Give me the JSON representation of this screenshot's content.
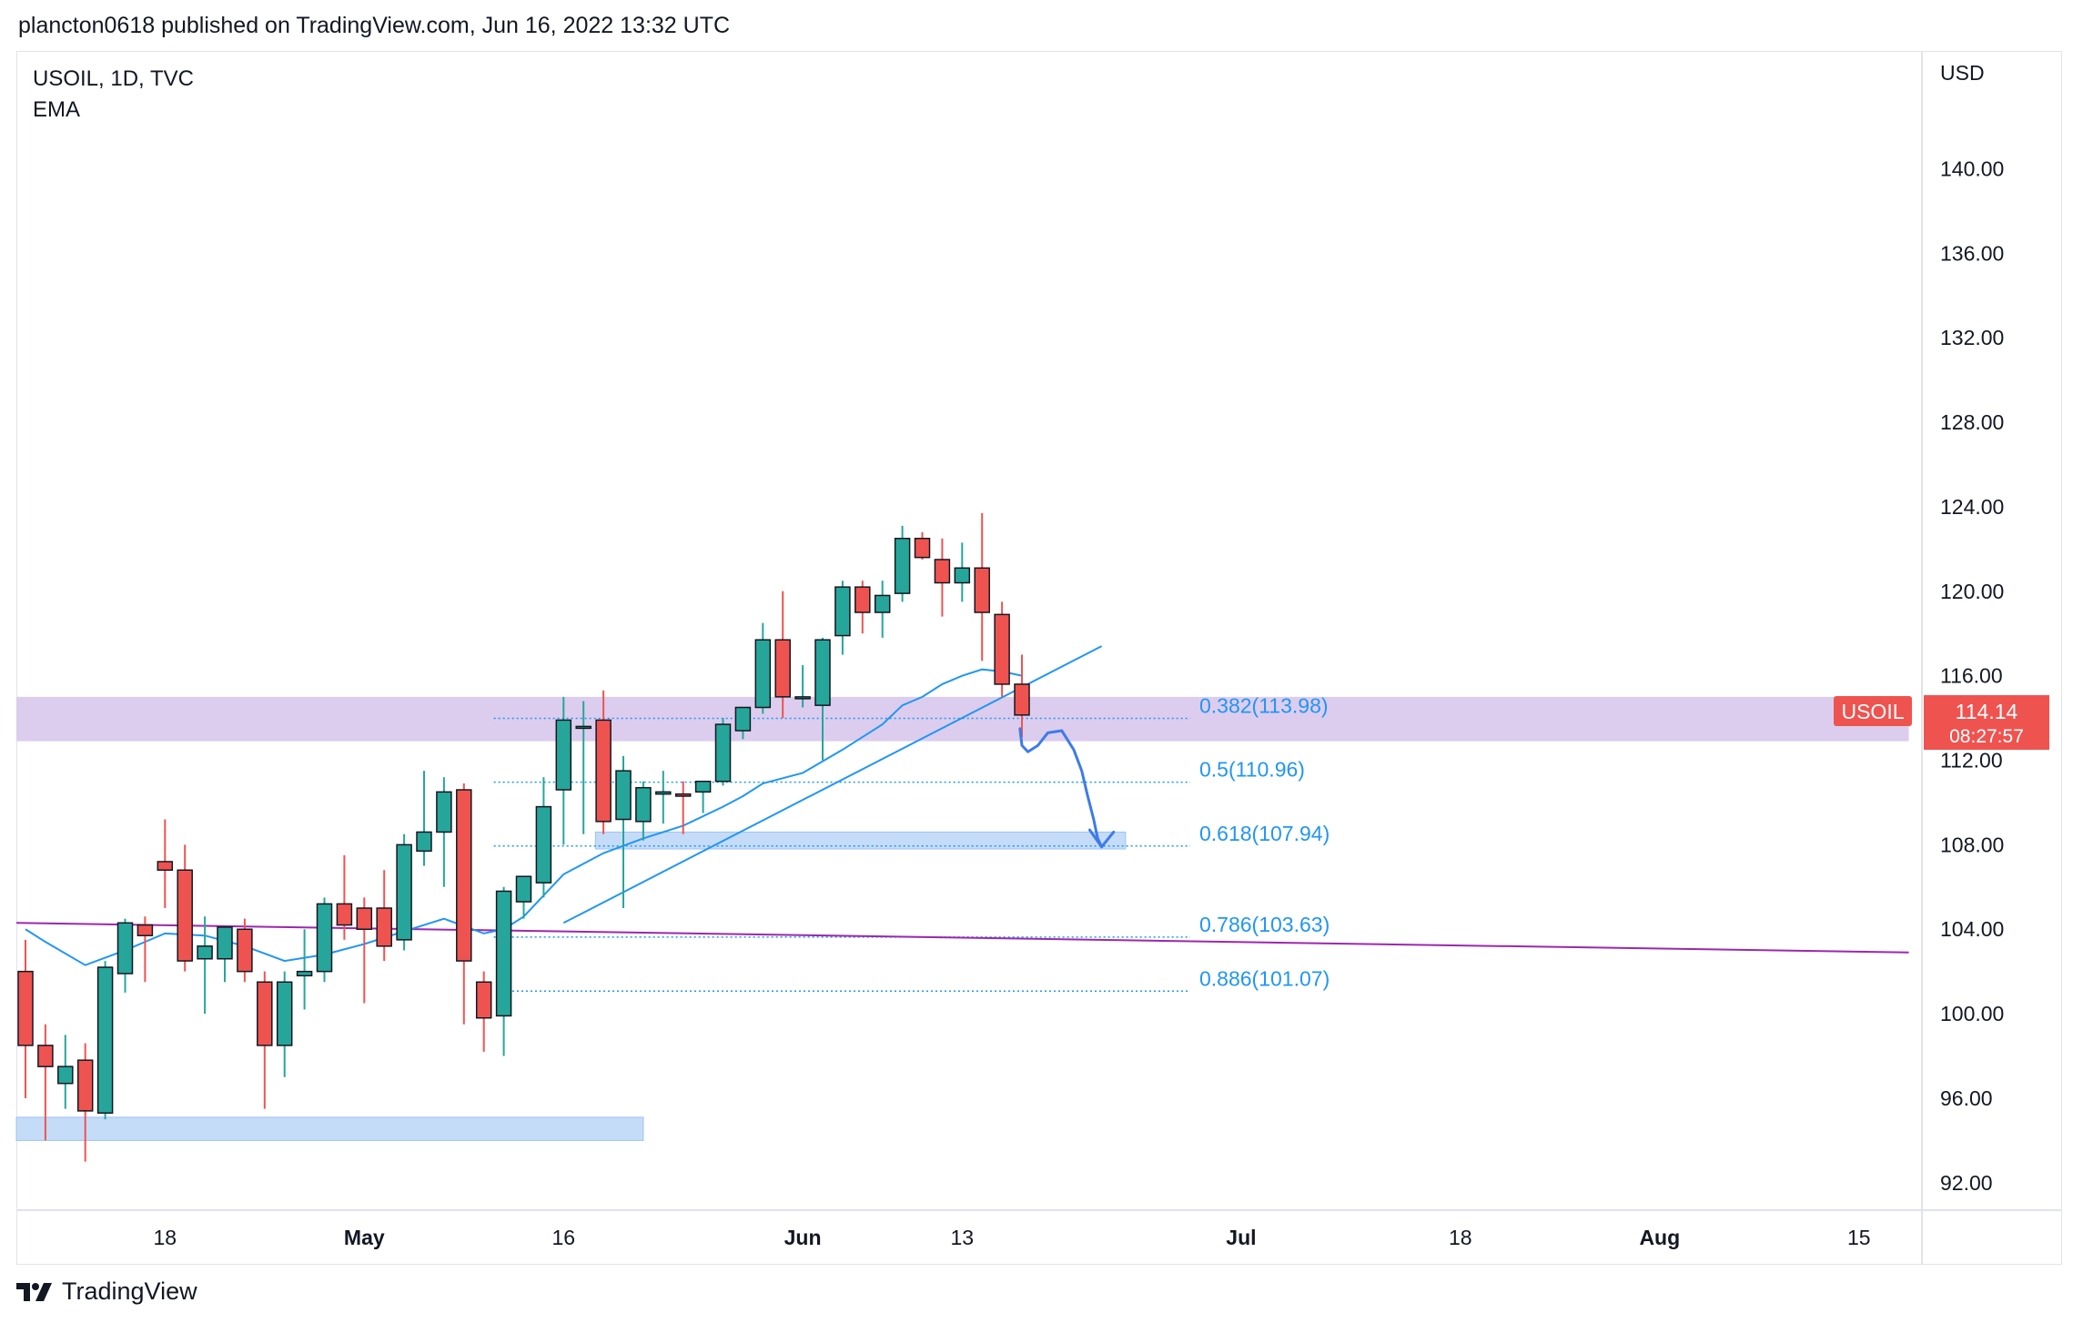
{
  "publisher": "plancton0618 published on TradingView.com, Jun 16, 2022 13:32 UTC",
  "symbol_line": "USOIL, 1D, TVC",
  "indicator": "EMA",
  "brand": "TradingView",
  "currency": "USD",
  "last_price": {
    "symbol": "USOIL",
    "price": "114.14",
    "countdown": "08:27:57",
    "color": "#ef5350"
  },
  "colors": {
    "up": "#26a69a",
    "down": "#ef5350",
    "ema": "#2196f3",
    "zone": "#d8c8ec",
    "support_zone": "#bbd6f7",
    "trendline": "#9c27b0",
    "fib": "#2196f3",
    "drawing": "#3d7be8"
  },
  "chart_data": {
    "type": "candlestick",
    "title": "USOIL, 1D, TVC",
    "ylabel": "USD",
    "ylim": [
      90.7,
      144.2
    ],
    "y_ticks": [
      "140.00",
      "136.00",
      "132.00",
      "128.00",
      "124.00",
      "120.00",
      "116.00",
      "112.00",
      "108.00",
      "104.00",
      "100.00",
      "96.00",
      "92.00"
    ],
    "x_ticks": [
      {
        "label": "18",
        "bar": 7
      },
      {
        "label": "May",
        "bar": 17
      },
      {
        "label": "16",
        "bar": 27
      },
      {
        "label": "Jun",
        "bar": 39
      },
      {
        "label": "13",
        "bar": 47
      },
      {
        "label": "Jul",
        "bar": 61
      },
      {
        "label": "18",
        "bar": 72
      },
      {
        "label": "Aug",
        "bar": 82
      },
      {
        "label": "15",
        "bar": 92
      }
    ],
    "candles": [
      {
        "o": 102.0,
        "h": 103.5,
        "l": 96.0,
        "c": 98.5
      },
      {
        "o": 98.5,
        "h": 99.5,
        "l": 94.0,
        "c": 97.5
      },
      {
        "o": 96.7,
        "h": 99.0,
        "l": 95.5,
        "c": 97.5
      },
      {
        "o": 97.8,
        "h": 98.6,
        "l": 93.0,
        "c": 95.4
      },
      {
        "o": 95.3,
        "h": 102.5,
        "l": 95.0,
        "c": 102.2
      },
      {
        "o": 101.9,
        "h": 104.5,
        "l": 101.0,
        "c": 104.3
      },
      {
        "o": 104.2,
        "h": 104.6,
        "l": 101.5,
        "c": 103.7
      },
      {
        "o": 107.2,
        "h": 109.2,
        "l": 105.0,
        "c": 106.8
      },
      {
        "o": 106.8,
        "h": 108.0,
        "l": 102.0,
        "c": 102.5
      },
      {
        "o": 102.6,
        "h": 104.6,
        "l": 100.0,
        "c": 103.2
      },
      {
        "o": 102.6,
        "h": 104.0,
        "l": 101.5,
        "c": 104.1
      },
      {
        "o": 104.0,
        "h": 104.5,
        "l": 101.5,
        "c": 102.0
      },
      {
        "o": 101.5,
        "h": 102.0,
        "l": 95.5,
        "c": 98.5
      },
      {
        "o": 98.5,
        "h": 102.0,
        "l": 97.0,
        "c": 101.5
      },
      {
        "o": 101.8,
        "h": 104.0,
        "l": 100.2,
        "c": 102.0
      },
      {
        "o": 102.0,
        "h": 105.5,
        "l": 101.5,
        "c": 105.2
      },
      {
        "o": 105.2,
        "h": 107.5,
        "l": 103.5,
        "c": 104.2
      },
      {
        "o": 105.0,
        "h": 105.5,
        "l": 100.5,
        "c": 104.0
      },
      {
        "o": 105.0,
        "h": 106.8,
        "l": 102.5,
        "c": 103.2
      },
      {
        "o": 103.5,
        "h": 108.5,
        "l": 103.0,
        "c": 108.0
      },
      {
        "o": 107.7,
        "h": 111.5,
        "l": 107.0,
        "c": 108.6
      },
      {
        "o": 108.6,
        "h": 111.2,
        "l": 106.0,
        "c": 110.5
      },
      {
        "o": 110.6,
        "h": 110.9,
        "l": 99.5,
        "c": 102.5
      },
      {
        "o": 101.5,
        "h": 102.0,
        "l": 98.2,
        "c": 99.8
      },
      {
        "o": 99.9,
        "h": 106.0,
        "l": 98.0,
        "c": 105.8
      },
      {
        "o": 105.3,
        "h": 106.3,
        "l": 104.5,
        "c": 106.5
      },
      {
        "o": 106.2,
        "h": 111.2,
        "l": 105.5,
        "c": 109.8
      },
      {
        "o": 110.6,
        "h": 115.0,
        "l": 108.0,
        "c": 113.9
      },
      {
        "o": 113.6,
        "h": 114.8,
        "l": 108.5,
        "c": 113.6
      },
      {
        "o": 113.9,
        "h": 115.3,
        "l": 108.5,
        "c": 109.1
      },
      {
        "o": 109.2,
        "h": 112.2,
        "l": 105.0,
        "c": 111.5
      },
      {
        "o": 109.1,
        "h": 111.0,
        "l": 108.2,
        "c": 110.7
      },
      {
        "o": 110.4,
        "h": 111.5,
        "l": 109.0,
        "c": 110.5
      },
      {
        "o": 110.4,
        "h": 111.0,
        "l": 108.5,
        "c": 110.3
      },
      {
        "o": 110.5,
        "h": 111.0,
        "l": 109.5,
        "c": 111.0
      },
      {
        "o": 111.0,
        "h": 114.0,
        "l": 110.8,
        "c": 113.7
      },
      {
        "o": 113.4,
        "h": 114.5,
        "l": 113.0,
        "c": 114.5
      },
      {
        "o": 114.5,
        "h": 118.5,
        "l": 114.2,
        "c": 117.7
      },
      {
        "o": 117.7,
        "h": 120.0,
        "l": 114.0,
        "c": 115.0
      },
      {
        "o": 115.0,
        "h": 116.5,
        "l": 114.5,
        "c": 115.0
      },
      {
        "o": 114.6,
        "h": 117.8,
        "l": 112.0,
        "c": 117.7
      },
      {
        "o": 117.9,
        "h": 120.5,
        "l": 117.0,
        "c": 120.2
      },
      {
        "o": 120.2,
        "h": 120.5,
        "l": 118.0,
        "c": 119.0
      },
      {
        "o": 119.0,
        "h": 120.5,
        "l": 117.8,
        "c": 119.8
      },
      {
        "o": 119.9,
        "h": 123.1,
        "l": 119.5,
        "c": 122.5
      },
      {
        "o": 122.5,
        "h": 122.8,
        "l": 121.5,
        "c": 121.6
      },
      {
        "o": 121.5,
        "h": 122.5,
        "l": 118.8,
        "c": 120.4
      },
      {
        "o": 120.4,
        "h": 122.3,
        "l": 119.5,
        "c": 121.1
      },
      {
        "o": 121.1,
        "h": 123.7,
        "l": 116.7,
        "c": 119.0
      },
      {
        "o": 118.9,
        "h": 119.5,
        "l": 115.0,
        "c": 115.6
      },
      {
        "o": 115.6,
        "h": 117.0,
        "l": 113.1,
        "c": 114.14
      }
    ],
    "ema": [
      {
        "bar": 0,
        "v": 104.0
      },
      {
        "bar": 1,
        "v": 103.4
      },
      {
        "bar": 3,
        "v": 102.3
      },
      {
        "bar": 5,
        "v": 103.0
      },
      {
        "bar": 7,
        "v": 103.8
      },
      {
        "bar": 9,
        "v": 103.7
      },
      {
        "bar": 11,
        "v": 103.2
      },
      {
        "bar": 13,
        "v": 102.5
      },
      {
        "bar": 15,
        "v": 102.8
      },
      {
        "bar": 17,
        "v": 103.3
      },
      {
        "bar": 19,
        "v": 103.9
      },
      {
        "bar": 21,
        "v": 104.5
      },
      {
        "bar": 23,
        "v": 103.8
      },
      {
        "bar": 24,
        "v": 104.0
      },
      {
        "bar": 25,
        "v": 104.6
      },
      {
        "bar": 26,
        "v": 105.6
      },
      {
        "bar": 27,
        "v": 106.6
      },
      {
        "bar": 28,
        "v": 107.1
      },
      {
        "bar": 29,
        "v": 107.6
      },
      {
        "bar": 31,
        "v": 108.3
      },
      {
        "bar": 33,
        "v": 108.9
      },
      {
        "bar": 35,
        "v": 109.8
      },
      {
        "bar": 36,
        "v": 110.3
      },
      {
        "bar": 37,
        "v": 110.9
      },
      {
        "bar": 39,
        "v": 111.4
      },
      {
        "bar": 41,
        "v": 112.5
      },
      {
        "bar": 43,
        "v": 113.7
      },
      {
        "bar": 44,
        "v": 114.6
      },
      {
        "bar": 45,
        "v": 115.0
      },
      {
        "bar": 46,
        "v": 115.6
      },
      {
        "bar": 47,
        "v": 116.0
      },
      {
        "bar": 48,
        "v": 116.3
      },
      {
        "bar": 49,
        "v": 116.2
      },
      {
        "bar": 50,
        "v": 116.0
      }
    ],
    "trendline_blue": {
      "from": {
        "bar": 27,
        "v": 104.3
      },
      "to": {
        "bar": 54,
        "v": 117.4
      }
    },
    "trendline_purple": {
      "from": {
        "bar": -0.8,
        "v": 104.3
      },
      "to": {
        "bar": 94.5,
        "v": 102.9
      }
    },
    "resistance_zone": {
      "from_bar": -0.8,
      "to_bar": 94.5,
      "low": 112.9,
      "high": 115.0
    },
    "support_zone_low": {
      "from_bar": -0.8,
      "to_bar": 31.0,
      "low": 94.0,
      "high": 95.1
    },
    "support_zone_fib": {
      "from_bar": 28.6,
      "to_bar": 55.2,
      "low": 107.8,
      "high": 108.6
    },
    "fib_levels": [
      {
        "label": "0.382(113.98)",
        "value": 113.98,
        "from_bar": 23.5
      },
      {
        "label": "0.5(110.96)",
        "value": 110.96,
        "from_bar": 23.5
      },
      {
        "label": "0.618(107.94)",
        "value": 107.94,
        "from_bar": 23.5
      },
      {
        "label": "0.786(103.63)",
        "value": 103.63,
        "from_bar": 23.5
      },
      {
        "label": "0.886(101.07)",
        "value": 101.07,
        "from_bar": 24.2
      }
    ],
    "forecast_path": [
      {
        "bar": 49.9,
        "v": 113.5
      },
      {
        "bar": 50.0,
        "v": 112.7
      },
      {
        "bar": 50.3,
        "v": 112.4
      },
      {
        "bar": 50.8,
        "v": 112.7
      },
      {
        "bar": 51.3,
        "v": 113.3
      },
      {
        "bar": 52.0,
        "v": 113.4
      },
      {
        "bar": 52.6,
        "v": 112.5
      },
      {
        "bar": 53.0,
        "v": 111.5
      },
      {
        "bar": 53.3,
        "v": 110.3
      },
      {
        "bar": 53.6,
        "v": 109.2
      },
      {
        "bar": 53.8,
        "v": 108.3
      },
      {
        "bar": 54.0,
        "v": 107.9
      }
    ],
    "forecast_arrowhead": [
      {
        "bar": 53.4,
        "v": 108.7
      },
      {
        "bar": 54.0,
        "v": 107.9
      },
      {
        "bar": 54.6,
        "v": 108.6
      }
    ]
  }
}
